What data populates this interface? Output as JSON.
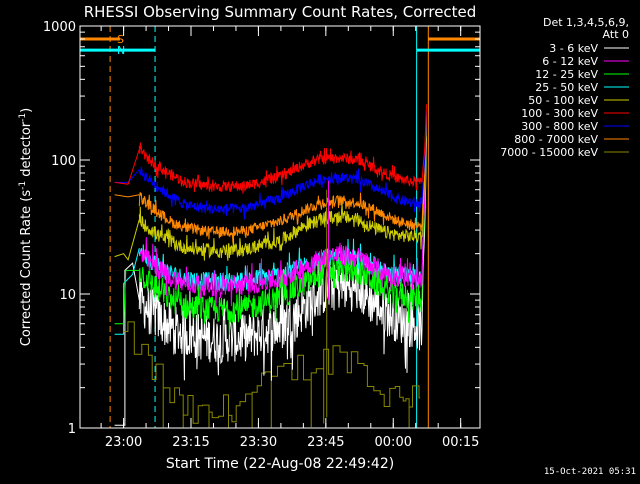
{
  "chart_data": {
    "type": "line",
    "title": "RHESSI Observing Summary Count Rates, Corrected",
    "xlabel": "Start Time (22-Aug-08 22:49:42)",
    "ylabel": "Corrected Count Rate (s^-1 detector^-1)",
    "ylabel_parts": {
      "pre": "Corrected Count Rate (s",
      "exp1": "-1",
      "mid": " detector",
      "exp2": "-1",
      "post": ")"
    },
    "yscale": "log",
    "ylim": [
      1,
      1000
    ],
    "xlim_minutes": [
      -9.7,
      79.3
    ],
    "x_ticks": [
      {
        "t": 0,
        "label": "23:00"
      },
      {
        "t": 15,
        "label": "23:15"
      },
      {
        "t": 30,
        "label": "23:30"
      },
      {
        "t": 45,
        "label": "23:45"
      },
      {
        "t": 60,
        "label": "00:00"
      },
      {
        "t": 75,
        "label": "00:15"
      }
    ],
    "y_ticks": [
      {
        "v": 1,
        "label": "1"
      },
      {
        "v": 10,
        "label": "10"
      },
      {
        "v": 100,
        "label": "100"
      },
      {
        "v": 1000,
        "label": "1000"
      }
    ],
    "legend_header": [
      "Det 1,3,4,5,6,9,",
      "Att 0"
    ],
    "series": [
      {
        "name": "3 - 6 keV",
        "color": "#ffffff",
        "noise": 0.18,
        "points": [
          [
            3.5,
            9
          ],
          [
            5,
            8
          ],
          [
            8,
            6.5
          ],
          [
            11,
            5.5
          ],
          [
            14,
            5
          ],
          [
            20,
            4.6
          ],
          [
            27,
            4.7
          ],
          [
            35,
            5.8
          ],
          [
            40,
            7.8
          ],
          [
            44,
            10.3
          ],
          [
            48,
            11.5
          ],
          [
            52,
            11
          ],
          [
            55,
            9
          ],
          [
            58,
            7.5
          ],
          [
            61,
            6.5
          ],
          [
            64,
            6
          ],
          [
            66.4,
            5.5
          ],
          [
            66.6,
            15
          ],
          [
            67,
            30
          ],
          [
            67.2,
            60
          ],
          [
            67.4,
            150
          ]
        ]
      },
      {
        "name": "6 - 12 keV",
        "color": "#ff00ff",
        "noise": 0.08,
        "points": [
          [
            3.5,
            20
          ],
          [
            5,
            18
          ],
          [
            8,
            15
          ],
          [
            11,
            13
          ],
          [
            14,
            12
          ],
          [
            20,
            11.5
          ],
          [
            27,
            11.7
          ],
          [
            35,
            13
          ],
          [
            40,
            16
          ],
          [
            44,
            18.5
          ],
          [
            48,
            19.5
          ],
          [
            52,
            18.8
          ],
          [
            55,
            16.5
          ],
          [
            58,
            14.5
          ],
          [
            61,
            13.5
          ],
          [
            64,
            13
          ],
          [
            66.4,
            12
          ],
          [
            66.6,
            25
          ],
          [
            67,
            50
          ],
          [
            67.2,
            100
          ],
          [
            67.4,
            200
          ]
        ]
      },
      {
        "name": "12 - 25 keV",
        "color": "#00ff00",
        "noise": 0.1,
        "points": [
          [
            3.5,
            15
          ],
          [
            5,
            13
          ],
          [
            8,
            10.5
          ],
          [
            11,
            9
          ],
          [
            14,
            8
          ],
          [
            20,
            7.6
          ],
          [
            27,
            7.8
          ],
          [
            35,
            9.5
          ],
          [
            40,
            12
          ],
          [
            44,
            14.5
          ],
          [
            48,
            15.5
          ],
          [
            52,
            15
          ],
          [
            55,
            13
          ],
          [
            58,
            11
          ],
          [
            61,
            10
          ],
          [
            64,
            9.5
          ],
          [
            66.4,
            9
          ],
          [
            66.6,
            20
          ],
          [
            67,
            40
          ],
          [
            67.2,
            80
          ],
          [
            67.4,
            180
          ]
        ]
      },
      {
        "name": "25 - 50 keV",
        "color": "#00ffff",
        "noise": 0.07,
        "points": [
          [
            3.5,
            22
          ],
          [
            5,
            19
          ],
          [
            8,
            16
          ],
          [
            11,
            14
          ],
          [
            14,
            13
          ],
          [
            20,
            12.3
          ],
          [
            27,
            12.6
          ],
          [
            35,
            14
          ],
          [
            40,
            16.5
          ],
          [
            44,
            18
          ],
          [
            48,
            18.5
          ],
          [
            52,
            18
          ],
          [
            55,
            16
          ],
          [
            58,
            14.5
          ],
          [
            61,
            13.7
          ],
          [
            64,
            13.4
          ],
          [
            66.4,
            13
          ],
          [
            66.6,
            25
          ],
          [
            67,
            50
          ],
          [
            67.2,
            100
          ],
          [
            67.4,
            200
          ]
        ]
      },
      {
        "name": "50 - 100 keV",
        "color": "#cccc00",
        "noise": 0.05,
        "points": [
          [
            3.5,
            36
          ],
          [
            5,
            32
          ],
          [
            8,
            27
          ],
          [
            11,
            24
          ],
          [
            14,
            22
          ],
          [
            20,
            21
          ],
          [
            27,
            21.5
          ],
          [
            35,
            25
          ],
          [
            40,
            32
          ],
          [
            44,
            36
          ],
          [
            48,
            38
          ],
          [
            52,
            36
          ],
          [
            55,
            32
          ],
          [
            58,
            29
          ],
          [
            61,
            27.5
          ],
          [
            64,
            27
          ],
          [
            66.4,
            27
          ],
          [
            66.6,
            40
          ],
          [
            67,
            70
          ],
          [
            67.2,
            120
          ],
          [
            67.4,
            220
          ]
        ]
      },
      {
        "name": "100 - 300 keV",
        "color": "#ff0000",
        "noise": 0.04,
        "points": [
          [
            3.5,
            120
          ],
          [
            5,
            105
          ],
          [
            8,
            88
          ],
          [
            11,
            76
          ],
          [
            14,
            68
          ],
          [
            20,
            63
          ],
          [
            27,
            64
          ],
          [
            35,
            75
          ],
          [
            40,
            92
          ],
          [
            44,
            102
          ],
          [
            48,
            104
          ],
          [
            52,
            100
          ],
          [
            55,
            90
          ],
          [
            58,
            80
          ],
          [
            61,
            73
          ],
          [
            64,
            69
          ],
          [
            66.4,
            68
          ],
          [
            66.6,
            85
          ],
          [
            67,
            120
          ],
          [
            67.2,
            170
          ],
          [
            67.4,
            260
          ]
        ]
      },
      {
        "name": "300 - 800 keV",
        "color": "#0000ff",
        "noise": 0.04,
        "points": [
          [
            3.5,
            85
          ],
          [
            5,
            75
          ],
          [
            8,
            62
          ],
          [
            11,
            52
          ],
          [
            14,
            46
          ],
          [
            20,
            43
          ],
          [
            27,
            43.5
          ],
          [
            35,
            52
          ],
          [
            40,
            64
          ],
          [
            44,
            72
          ],
          [
            48,
            74
          ],
          [
            52,
            71
          ],
          [
            55,
            64
          ],
          [
            58,
            57
          ],
          [
            61,
            51
          ],
          [
            64,
            48
          ],
          [
            66.4,
            47
          ],
          [
            66.6,
            65
          ],
          [
            67,
            100
          ],
          [
            67.2,
            150
          ],
          [
            67.4,
            230
          ]
        ]
      },
      {
        "name": "800 - 7000 keV",
        "color": "#ff8800",
        "noise": 0.04,
        "points": [
          [
            3.5,
            55
          ],
          [
            5,
            48
          ],
          [
            8,
            40
          ],
          [
            11,
            34
          ],
          [
            14,
            31
          ],
          [
            20,
            29
          ],
          [
            27,
            29.5
          ],
          [
            35,
            35
          ],
          [
            40,
            42
          ],
          [
            44,
            48
          ],
          [
            48,
            50
          ],
          [
            52,
            48
          ],
          [
            55,
            44
          ],
          [
            58,
            39
          ],
          [
            61,
            35
          ],
          [
            64,
            33
          ],
          [
            66.4,
            32
          ],
          [
            66.6,
            50
          ],
          [
            67,
            80
          ],
          [
            67.2,
            130
          ],
          [
            67.4,
            220
          ]
        ]
      },
      {
        "name": "7000 - 15000 keV",
        "color": "#888800",
        "noise": 0,
        "points": [
          [
            0,
            4.8
          ],
          [
            2,
            4.5
          ],
          [
            4,
            3.5
          ],
          [
            6,
            2.8
          ],
          [
            8,
            2.2
          ],
          [
            10,
            1.8
          ],
          [
            13,
            1.4
          ],
          [
            17,
            1.2
          ],
          [
            21,
            1.3
          ],
          [
            26,
            1.6
          ],
          [
            30,
            1.9
          ],
          [
            34,
            2.4
          ],
          [
            38,
            2.8
          ],
          [
            42,
            3
          ],
          [
            45,
            3.3
          ],
          [
            48,
            3.5
          ],
          [
            51,
            3.4
          ],
          [
            53,
            2.8
          ],
          [
            55,
            2.2
          ],
          [
            58,
            1.8
          ],
          [
            61,
            1.7
          ],
          [
            64,
            1.8
          ],
          [
            66,
            2
          ]
        ]
      }
    ],
    "early_segments": [
      {
        "color": "#ffffff",
        "points": [
          [
            -2,
            1.05
          ],
          [
            0.3,
            1.05
          ],
          [
            0.3,
            15
          ],
          [
            2,
            17
          ],
          [
            3.5,
            9
          ]
        ]
      },
      {
        "color": "#00ffff",
        "points": [
          [
            -2,
            5
          ],
          [
            0,
            5
          ],
          [
            0,
            12
          ],
          [
            2,
            14
          ],
          [
            3.5,
            22
          ]
        ]
      },
      {
        "color": "#cccc00",
        "points": [
          [
            -2,
            19
          ],
          [
            0,
            20
          ],
          [
            1,
            18
          ],
          [
            3.5,
            36
          ]
        ]
      },
      {
        "color": "#00ff00",
        "points": [
          [
            -2,
            6
          ],
          [
            0,
            6
          ],
          [
            0.5,
            15
          ],
          [
            3.5,
            15
          ]
        ]
      },
      {
        "color": "#0000ff",
        "points": [
          [
            -2,
            68
          ],
          [
            1,
            68
          ],
          [
            3.5,
            85
          ]
        ]
      },
      {
        "color": "#ff0000",
        "points": [
          [
            -2,
            68
          ],
          [
            1,
            66
          ],
          [
            3.5,
            120
          ]
        ]
      },
      {
        "color": "#ff8800",
        "points": [
          [
            -2,
            55
          ],
          [
            1,
            53
          ],
          [
            3.5,
            55
          ]
        ]
      }
    ],
    "top_bars": [
      {
        "color": "#ff8800",
        "label": "S",
        "t0": -9.7,
        "t1": -0.8,
        "v": 800
      },
      {
        "color": "#ff8800",
        "label": "",
        "t0": 67.8,
        "t1": 79.3,
        "v": 800
      },
      {
        "color": "#00ffff",
        "label": "N",
        "t0": -9.7,
        "t1": 7,
        "v": 660
      },
      {
        "color": "#00ffff",
        "label": "",
        "t0": 65.2,
        "t1": 79.3,
        "v": 660
      }
    ],
    "vlines": [
      {
        "color": "#ff8800",
        "t": -3,
        "dash": true
      },
      {
        "color": "#00ffff",
        "t": 7,
        "dash": true
      },
      {
        "color": "#00ffff",
        "t": 65.2,
        "dash": false
      },
      {
        "color": "#ff8800",
        "t": 67.8,
        "dash": false
      },
      {
        "color": "#00ffff",
        "t": 79.3,
        "dash": true
      }
    ],
    "timestamp": "15-Oct-2021 05:31"
  }
}
